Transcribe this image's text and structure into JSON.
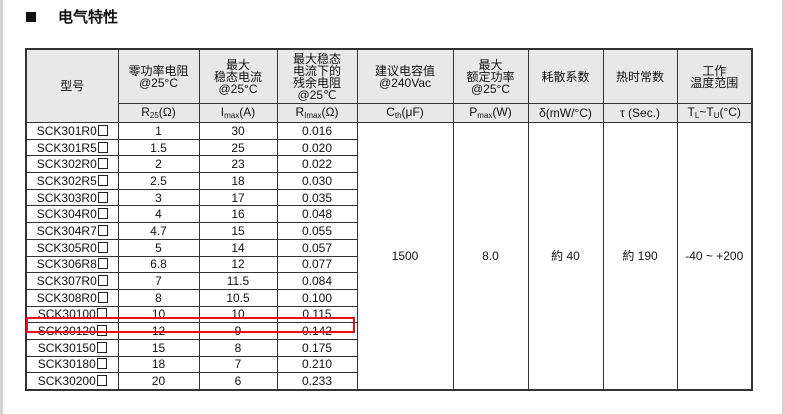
{
  "section_title": "电气特性",
  "highlight_color": "#e8101e",
  "headers": [
    {
      "label": "型号",
      "unit": ""
    },
    {
      "label": "零功率电阻\n@25°C",
      "unit_main": "R",
      "unit_sub": "25",
      "unit_tail": "(Ω)"
    },
    {
      "label": "最大\n稳态电流\n@25°C",
      "unit_main": "I",
      "unit_sub": "max",
      "unit_tail": "(A)"
    },
    {
      "label": "最大稳态\n电流下的\n残余电阻\n@25℃",
      "unit_main": "R",
      "unit_sub": "Imax",
      "unit_tail": "(Ω)"
    },
    {
      "label": "建议电容值\n@240Vac",
      "unit_main": "C",
      "unit_sub": "th",
      "unit_tail": "(μF)"
    },
    {
      "label": "最大\n额定功率\n@25°C",
      "unit_main": "P",
      "unit_sub": "max",
      "unit_tail": "(W)"
    },
    {
      "label": "耗散系数",
      "unit_main": "δ(mW/°C)",
      "unit_sub": "",
      "unit_tail": ""
    },
    {
      "label": "热时常数",
      "unit_main": "τ (Sec.)",
      "unit_sub": "",
      "unit_tail": ""
    },
    {
      "label": "工作\n温度范围",
      "unit_main": "T",
      "unit_sub": "L",
      "unit_tail": "~T",
      "unit_sub2": "U",
      "unit_tail2": "(°C)"
    }
  ],
  "rows": [
    [
      "SCK301R0",
      "1",
      "30",
      "0.016"
    ],
    [
      "SCK301R5",
      "1.5",
      "25",
      "0.020"
    ],
    [
      "SCK302R0",
      "2",
      "23",
      "0.022"
    ],
    [
      "SCK302R5",
      "2.5",
      "18",
      "0.030"
    ],
    [
      "SCK303R0",
      "3",
      "17",
      "0.035"
    ],
    [
      "SCK304R0",
      "4",
      "16",
      "0.048"
    ],
    [
      "SCK304R7",
      "4.7",
      "15",
      "0.055"
    ],
    [
      "SCK305R0",
      "5",
      "14",
      "0.057"
    ],
    [
      "SCK306R8",
      "6.8",
      "12",
      "0.077"
    ],
    [
      "SCK307R0",
      "7",
      "11.5",
      "0.084"
    ],
    [
      "SCK308R0",
      "8",
      "10.5",
      "0.100"
    ],
    [
      "SCK30100",
      "10",
      "10",
      "0.115"
    ],
    [
      "SCK30120",
      "12",
      "9",
      "0.142"
    ],
    [
      "SCK30150",
      "15",
      "8",
      "0.175"
    ],
    [
      "SCK30180",
      "18",
      "7",
      "0.210"
    ],
    [
      "SCK30200",
      "20",
      "6",
      "0.233"
    ]
  ],
  "highlighted_row": "SCK30100",
  "shared": {
    "capacitance": "1500",
    "power": "8.0",
    "dissipation": "約 40",
    "time_constant": "約 190",
    "temp_range": "-40 ~ +200"
  }
}
